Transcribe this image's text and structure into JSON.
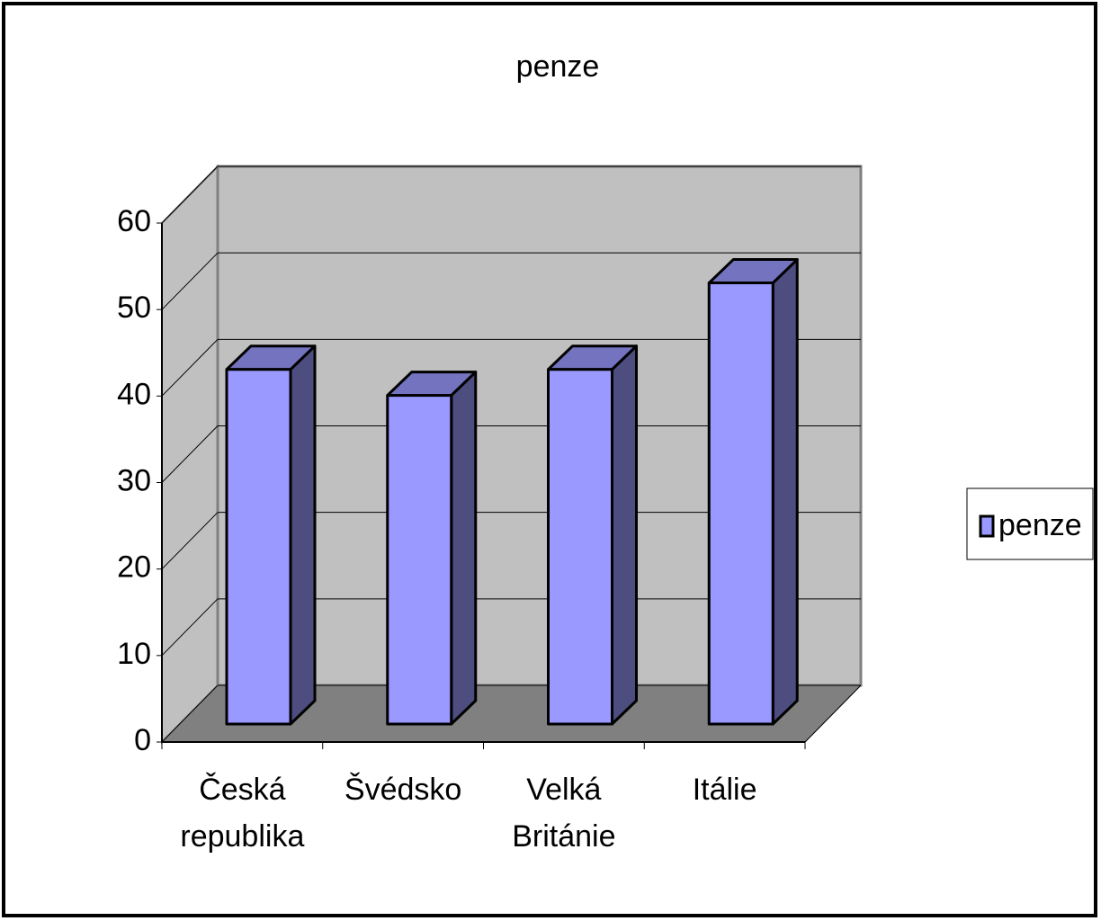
{
  "chart_data": {
    "type": "bar3d",
    "title": "penze",
    "categories": [
      "Česká republika",
      "Švédsko",
      "Velká Británie",
      "Itálie"
    ],
    "series": [
      {
        "name": "penze",
        "color": "#9999ff",
        "values": [
          41,
          38,
          41,
          51
        ]
      }
    ],
    "ylim": [
      0,
      60
    ],
    "yticks": [
      0,
      10,
      20,
      30,
      40,
      50,
      60
    ],
    "grid": true,
    "legend": "right"
  }
}
